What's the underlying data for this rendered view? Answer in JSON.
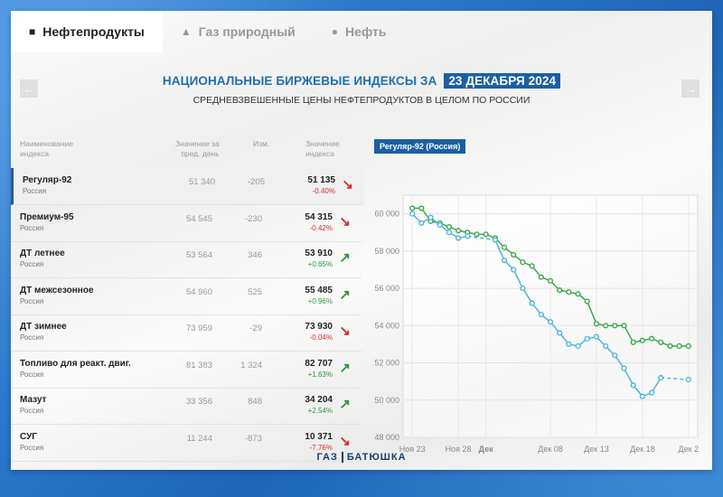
{
  "tabs": [
    {
      "label": "Нефтепродукты",
      "icon": "document-icon"
    },
    {
      "label": "Газ природный",
      "icon": "flame-icon"
    },
    {
      "label": "Нефть",
      "icon": "drop-icon"
    }
  ],
  "header": {
    "title": "НАЦИОНАЛЬНЫЕ БИРЖЕВЫЕ ИНДЕКСЫ ЗА",
    "date": "23 ДЕКАБРЯ 2024",
    "subtitle": "СРЕДНЕВЗВЕШЕННЫЕ ЦЕНЫ НЕФТЕПРОДУКТОВ В ЦЕЛОМ ПО РОССИИ"
  },
  "table": {
    "headers": {
      "name": "Наименование\nиндекса",
      "prev": "Значение за\nпред. день",
      "chg": "Изм.",
      "val": "Значение\nиндекса"
    },
    "rows": [
      {
        "name": "Регуляр-92",
        "region": "Россия",
        "prev": "51 340",
        "chg": "-205",
        "val": "51 135",
        "pct": "-0.40%",
        "dir": "down"
      },
      {
        "name": "Премиум-95",
        "region": "Россия",
        "prev": "54 545",
        "chg": "-230",
        "val": "54 315",
        "pct": "-0.42%",
        "dir": "down"
      },
      {
        "name": "ДТ летнее",
        "region": "Россия",
        "prev": "53 564",
        "chg": "346",
        "val": "53 910",
        "pct": "+0.65%",
        "dir": "up"
      },
      {
        "name": "ДТ межсезонное",
        "region": "Россия",
        "prev": "54 960",
        "chg": "525",
        "val": "55 485",
        "pct": "+0.96%",
        "dir": "up"
      },
      {
        "name": "ДТ зимнее",
        "region": "Россия",
        "prev": "73 959",
        "chg": "-29",
        "val": "73 930",
        "pct": "-0.04%",
        "dir": "down"
      },
      {
        "name": "Топливо для реакт. двиг.",
        "region": "Россия",
        "prev": "81 383",
        "chg": "1 324",
        "val": "82 707",
        "pct": "+1.63%",
        "dir": "up"
      },
      {
        "name": "Мазут",
        "region": "Россия",
        "prev": "33 356",
        "chg": "848",
        "val": "34 204",
        "pct": "+2.54%",
        "dir": "up"
      },
      {
        "name": "СУГ",
        "region": "Россия",
        "prev": "11 244",
        "chg": "-873",
        "val": "10 371",
        "pct": "-7.76%",
        "dir": "down"
      }
    ]
  },
  "chart_label": "Регуляр-92 (Россия)",
  "colors": {
    "up": "#2a9a3a",
    "down": "#d63131",
    "green_series": "#3aa84a",
    "blue_series": "#4bb6dd",
    "accent": "#1a5fa5"
  },
  "footer": {
    "left": "ГАЗ",
    "right": "БАТЮШКА"
  },
  "chart_data": {
    "type": "line",
    "ylim": [
      48000,
      61000
    ],
    "yticks": [
      48000,
      50000,
      52000,
      54000,
      56000,
      58000,
      60000
    ],
    "ytick_labels": [
      "48 000",
      "50 000",
      "52 000",
      "54 000",
      "56 000",
      "58 000",
      "60 000"
    ],
    "xticks": [
      {
        "x": 0,
        "label": "Ноя 23"
      },
      {
        "x": 5,
        "label": "Ноя 28"
      },
      {
        "x": 8,
        "label": "Дек"
      },
      {
        "x": 15,
        "label": "Дек 08"
      },
      {
        "x": 20,
        "label": "Дек 13"
      },
      {
        "x": 25,
        "label": "Дек 18"
      },
      {
        "x": 30,
        "label": "Дек 2"
      }
    ],
    "xlim": [
      -1,
      31
    ],
    "grid": true,
    "series": [
      {
        "color": "#3aa84a",
        "points": [
          [
            0,
            60300
          ],
          [
            1,
            60300
          ],
          [
            2,
            59600
          ],
          [
            3,
            59500
          ],
          [
            4,
            59300
          ],
          [
            5,
            59100
          ],
          [
            6,
            59000
          ],
          [
            7,
            58900
          ],
          [
            8,
            58900
          ],
          [
            9,
            58700
          ],
          [
            10,
            58200
          ],
          [
            11,
            57800
          ],
          [
            12,
            57400
          ],
          [
            13,
            57200
          ],
          [
            14,
            56600
          ],
          [
            15,
            56400
          ],
          [
            16,
            55900
          ],
          [
            17,
            55800
          ],
          [
            18,
            55700
          ],
          [
            19,
            55300
          ],
          [
            20,
            54100
          ],
          [
            21,
            54000
          ],
          [
            22,
            54000
          ],
          [
            23,
            54000
          ],
          [
            24,
            53100
          ],
          [
            25,
            53200
          ],
          [
            26,
            53300
          ],
          [
            27,
            53100
          ],
          [
            28,
            52900
          ],
          [
            29,
            52900
          ],
          [
            30,
            52900
          ]
        ]
      },
      {
        "color": "#4bb6dd",
        "points": [
          [
            0,
            60000
          ],
          [
            1,
            59500
          ],
          [
            2,
            59800
          ],
          [
            3,
            59400
          ],
          [
            4,
            59000
          ],
          [
            5,
            58700
          ],
          [
            6,
            58800
          ],
          [
            9,
            58600
          ],
          [
            10,
            57500
          ],
          [
            11,
            57000
          ],
          [
            12,
            56000
          ],
          [
            13,
            55200
          ],
          [
            14,
            54600
          ],
          [
            15,
            54200
          ],
          [
            16,
            53600
          ],
          [
            17,
            53000
          ],
          [
            18,
            52900
          ],
          [
            19,
            53300
          ],
          [
            20,
            53400
          ],
          [
            21,
            52900
          ],
          [
            22,
            52400
          ],
          [
            23,
            51700
          ],
          [
            24,
            50800
          ],
          [
            25,
            50200
          ],
          [
            26,
            50400
          ],
          [
            27,
            51200
          ],
          [
            30,
            51100
          ]
        ]
      }
    ]
  }
}
